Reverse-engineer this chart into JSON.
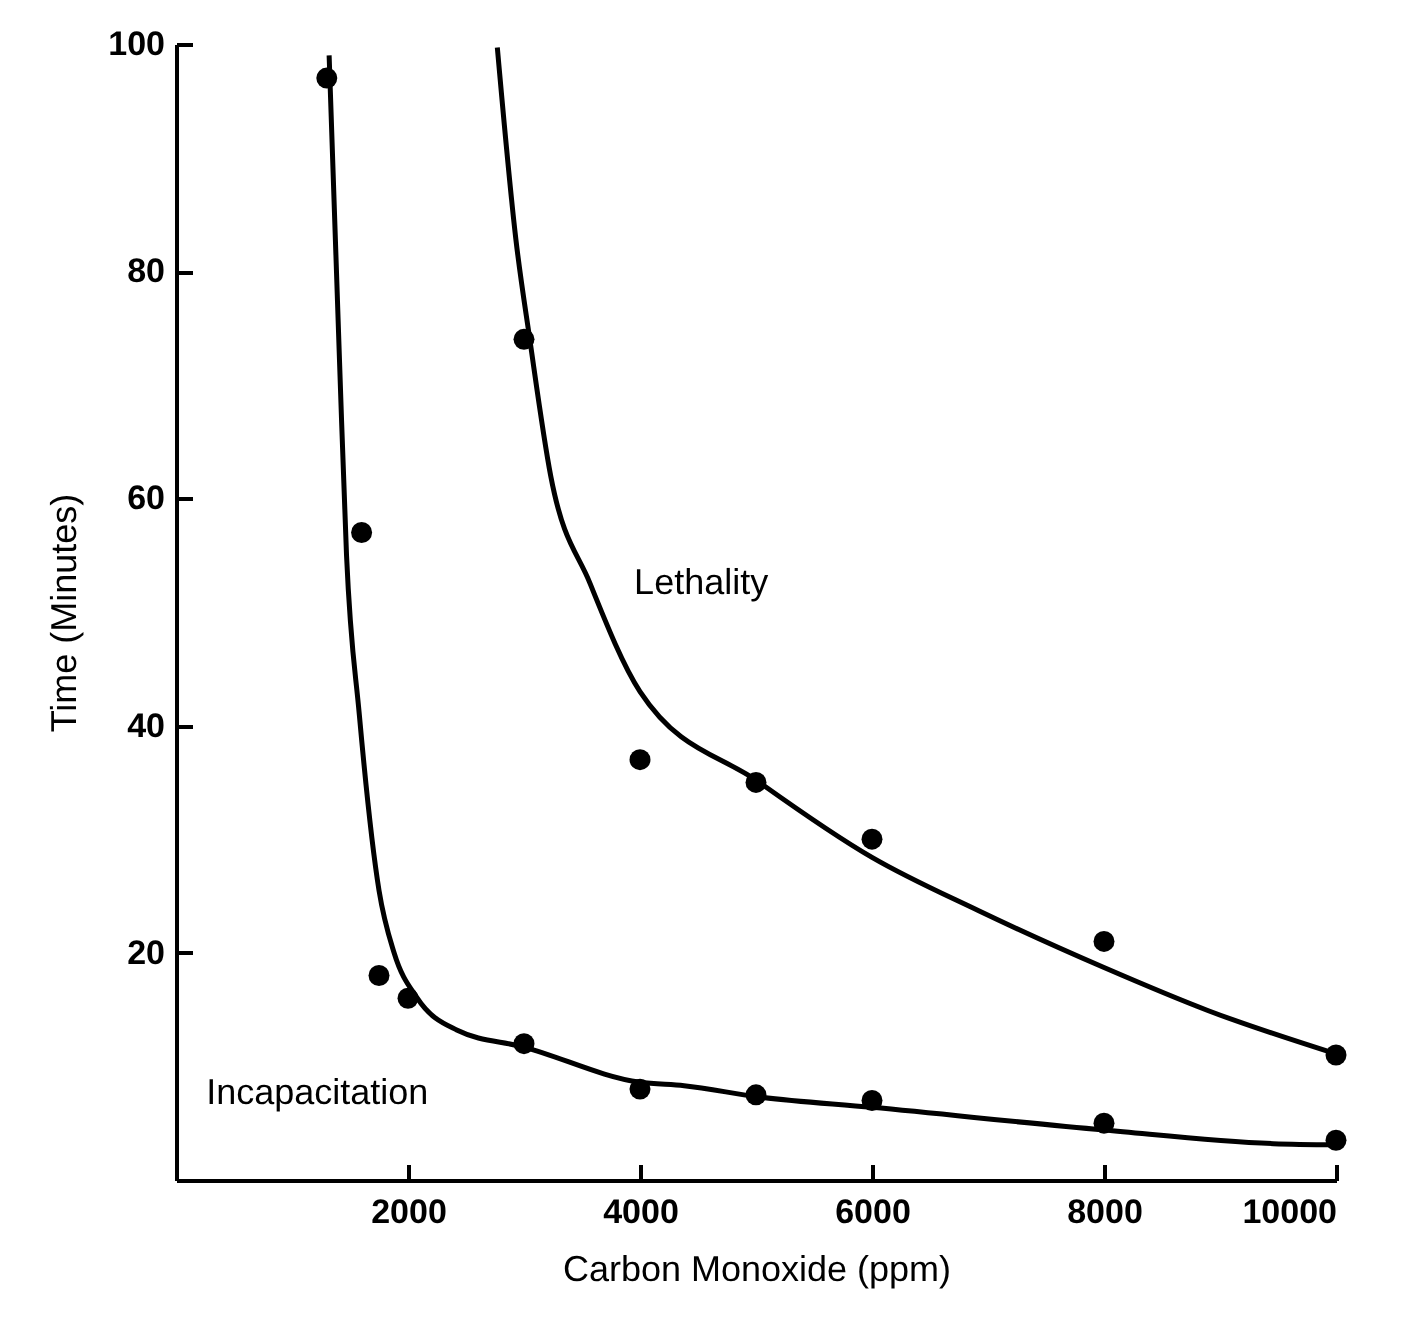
{
  "chart_data": {
    "type": "scatter",
    "xlabel": "Carbon Monoxide (ppm)",
    "ylabel": "Time (Minutes)",
    "xlim": [
      0,
      10000
    ],
    "ylim": [
      0,
      100
    ],
    "xticks": [
      2000,
      4000,
      6000,
      8000,
      10000
    ],
    "yticks": [
      20,
      40,
      60,
      80,
      100
    ],
    "marker": "circle",
    "series": [
      {
        "color": "#000000",
        "x": [
          1300,
          1600,
          1750,
          2000,
          3000,
          4000,
          5000,
          6000,
          8000,
          10000
        ],
        "values": [
          97,
          57,
          18,
          16,
          12,
          8,
          7.5,
          7,
          5,
          3.5
        ]
      },
      {
        "color": "#000000",
        "x": [
          3000,
          4000,
          5000,
          6000,
          8000,
          10000
        ],
        "values": [
          74,
          37,
          35,
          30,
          21,
          11
        ]
      },
      {
        "type": "line",
        "name": "Incapacitation",
        "color": "#000000",
        "marker": "none",
        "x": [
          1320,
          1410,
          1470,
          1580,
          1750,
          1880,
          2080,
          2420,
          3000,
          4000,
          4380,
          5030,
          6000,
          8000,
          9460,
          10000
        ],
        "values": [
          99,
          72,
          55,
          41,
          25.5,
          20,
          16,
          13.2,
          11.7,
          8.6,
          8.3,
          7.3,
          6.4,
          4.4,
          3.2,
          3.1
        ]
      },
      {
        "type": "line",
        "name": "Lethality",
        "color": "#000000",
        "marker": "none",
        "x": [
          2770,
          2930,
          3050,
          3230,
          3570,
          4000,
          5030,
          6000,
          6920,
          8000,
          8900,
          10000
        ],
        "values": [
          99.7,
          82.8,
          74,
          62,
          52.5,
          43,
          35,
          28.4,
          23.7,
          18.7,
          14.9,
          11.1
        ]
      }
    ]
  }
}
